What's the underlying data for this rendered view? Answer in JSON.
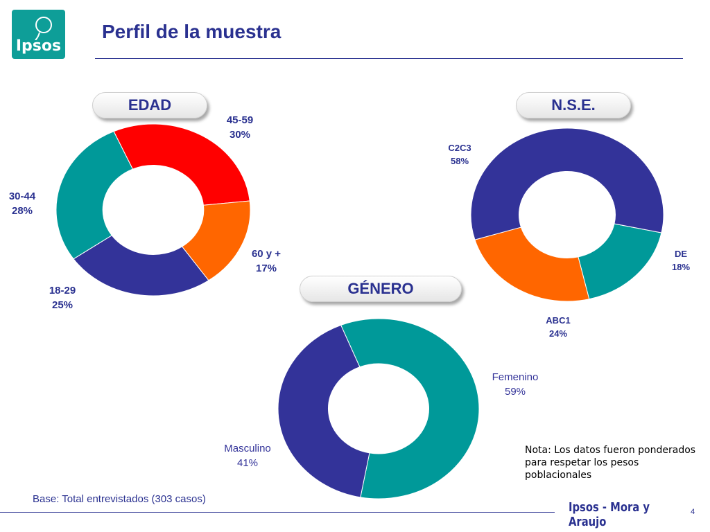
{
  "header": {
    "logo_text": "Ipsos",
    "title": "Perfil de la muestra"
  },
  "colors": {
    "red": "#ff0000",
    "orange": "#ff6600",
    "navy": "#333399",
    "teal": "#009999",
    "title": "#2a3190"
  },
  "chart_data": [
    {
      "type": "pie",
      "title": "EDAD",
      "slices": [
        {
          "label": "45-59",
          "value": 30,
          "value_label": "30%",
          "color": "#ff0000"
        },
        {
          "label": "60 y +",
          "value": 17,
          "value_label": "17%",
          "color": "#ff6600"
        },
        {
          "label": "18-29",
          "value": 25,
          "value_label": "25%",
          "color": "#333399"
        },
        {
          "label": "30-44",
          "value": 28,
          "value_label": "28%",
          "color": "#009999"
        }
      ]
    },
    {
      "type": "pie",
      "title": "N.S.E.",
      "slices": [
        {
          "label": "DE",
          "value": 18,
          "value_label": "18%",
          "color": "#009999"
        },
        {
          "label": "ABC1",
          "value": 24,
          "value_label": "24%",
          "color": "#ff6600"
        },
        {
          "label": "C2C3",
          "value": 58,
          "value_label": "58%",
          "color": "#333399"
        }
      ]
    },
    {
      "type": "pie",
      "title": "GÉNERO",
      "slices": [
        {
          "label": "Femenino",
          "value": 59,
          "value_label": "59%",
          "color": "#009999"
        },
        {
          "label": "Masculino",
          "value": 41,
          "value_label": "41%",
          "color": "#333399"
        }
      ]
    }
  ],
  "note": "Nota: Los datos fueron ponderados para respetar los pesos poblacionales",
  "footer": {
    "base": "Base: Total entrevistados (303 casos)",
    "brand": "Ipsos - Mora y Araujo",
    "page": "4"
  }
}
